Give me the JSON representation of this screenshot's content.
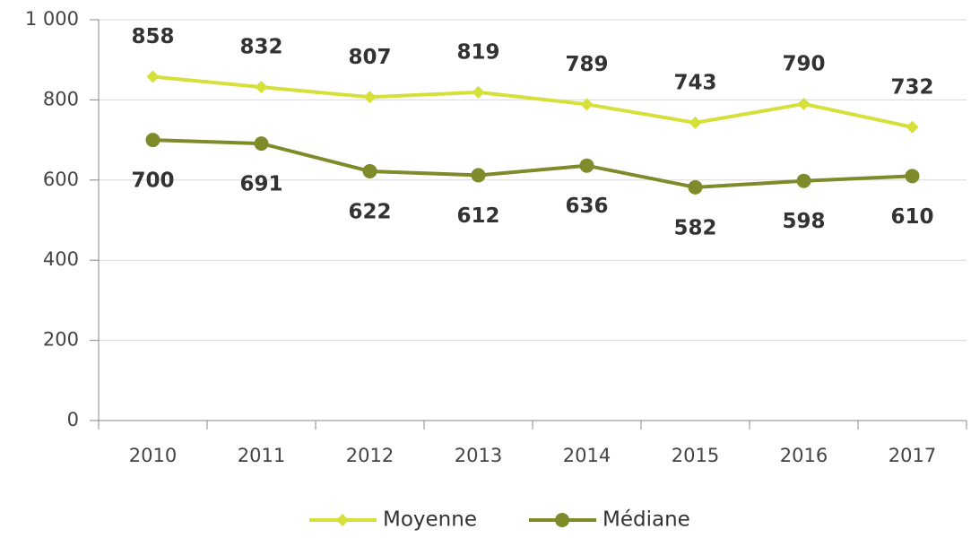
{
  "chart_data": {
    "type": "line",
    "categories": [
      "2010",
      "2011",
      "2012",
      "2013",
      "2014",
      "2015",
      "2016",
      "2017"
    ],
    "series": [
      {
        "name": "Moyenne",
        "color": "#d5e03a",
        "marker": "diamond",
        "values": [
          858,
          832,
          807,
          819,
          789,
          743,
          790,
          732
        ]
      },
      {
        "name": "Médiane",
        "color": "#7f8a2b",
        "marker": "circle",
        "values": [
          700,
          691,
          622,
          612,
          636,
          582,
          598,
          610
        ]
      }
    ],
    "ylim": [
      0,
      1000
    ],
    "yticks": [
      0,
      200,
      400,
      600,
      800,
      {
        "value": 1000,
        "label": "1 000"
      }
    ],
    "grid": true
  }
}
